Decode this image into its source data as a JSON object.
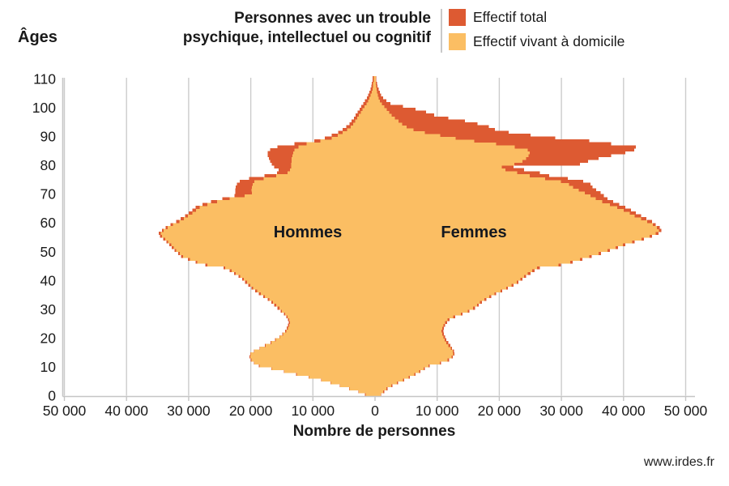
{
  "header": {
    "title_line1": "Personnes avec un trouble",
    "title_line2": "psychique, intellectuel ou cognitif",
    "legend": [
      {
        "label": "Effectif total",
        "color": "#dd5a32"
      },
      {
        "label": "Effectif vivant à domicile",
        "color": "#fbbe63"
      }
    ]
  },
  "footer": {
    "source": "www.irdes.fr"
  },
  "chart_data": {
    "type": "bar",
    "subtype": "population-pyramid",
    "title": "Personnes avec un trouble psychique, intellectuel ou cognitif",
    "y_axis_title": "Âges",
    "x_axis_title": "Nombre de personnes",
    "left_label": "Hommes",
    "right_label": "Femmes",
    "grid": "vertical-only",
    "xlim": [
      -50000,
      50000
    ],
    "ylim": [
      0,
      110
    ],
    "colors": {
      "total": "#dd5a32",
      "domicile": "#fbbe63",
      "grid": "#cccccc",
      "axis": "#c5c5c5"
    },
    "y_ticks": [
      110,
      100,
      90,
      80,
      70,
      60,
      50,
      40,
      30,
      20,
      10,
      0
    ],
    "x_ticks": [
      {
        "value": -50000,
        "label": "50 000"
      },
      {
        "value": -40000,
        "label": "40 000"
      },
      {
        "value": -30000,
        "label": "30 000"
      },
      {
        "value": -20000,
        "label": "20 000"
      },
      {
        "value": -10000,
        "label": "10 000"
      },
      {
        "value": 0,
        "label": "0"
      },
      {
        "value": 10000,
        "label": "10 000"
      },
      {
        "value": 20000,
        "label": "20 000"
      },
      {
        "value": 30000,
        "label": "30 000"
      },
      {
        "value": 40000,
        "label": "40 000"
      },
      {
        "value": 50000,
        "label": "50 000"
      }
    ],
    "ages": "index = age in years, 0 to 110",
    "series": [
      {
        "name": "Hommes - Effectif total",
        "side": "left",
        "color": "#dd5a32",
        "values": [
          1600,
          2700,
          4200,
          5700,
          7200,
          8700,
          10700,
          12700,
          14700,
          16700,
          18700,
          19500,
          20000,
          20200,
          20100,
          19500,
          18600,
          17700,
          16800,
          16100,
          15400,
          14900,
          14500,
          14200,
          14000,
          13900,
          14000,
          14300,
          14700,
          15200,
          15700,
          16200,
          16700,
          17300,
          18000,
          18700,
          19300,
          19900,
          20400,
          20900,
          21400,
          22000,
          22700,
          23400,
          24400,
          27300,
          28900,
          30100,
          31200,
          31700,
          32300,
          32700,
          33100,
          33600,
          34100,
          34600,
          34800,
          34300,
          33700,
          32900,
          32000,
          31300,
          30600,
          30000,
          29400,
          28900,
          27800,
          26400,
          24600,
          22600,
          22500,
          22500,
          22400,
          22200,
          21800,
          20300,
          17800,
          15800,
          15500,
          16200,
          16600,
          16900,
          17100,
          17300,
          17300,
          16900,
          15700,
          13000,
          9800,
          8100,
          7000,
          5900,
          5200,
          4600,
          4100,
          3800,
          3400,
          3100,
          2800,
          2500,
          2200,
          1900,
          1600,
          1300,
          1100,
          900,
          700,
          600,
          500,
          400,
          400
        ]
      },
      {
        "name": "Hommes - Effectif vivant à domicile",
        "side": "left",
        "color": "#fbbe63",
        "values": [
          1500,
          2600,
          4100,
          5600,
          7100,
          8600,
          10600,
          12600,
          14600,
          16600,
          18600,
          19400,
          19900,
          20100,
          20000,
          19400,
          18500,
          17600,
          16700,
          16000,
          15300,
          14800,
          14300,
          14000,
          13800,
          13700,
          13800,
          14100,
          14500,
          15000,
          15400,
          15900,
          16400,
          17000,
          17700,
          18400,
          19000,
          19600,
          20100,
          20600,
          21100,
          21700,
          22400,
          23100,
          24100,
          27000,
          28600,
          29800,
          30900,
          31400,
          32000,
          32400,
          32800,
          33300,
          33800,
          34300,
          34500,
          34000,
          33400,
          32500,
          31500,
          30800,
          30100,
          29400,
          28800,
          28200,
          27000,
          25400,
          23400,
          21000,
          19800,
          19900,
          19800,
          19700,
          19400,
          17900,
          15900,
          14100,
          13700,
          13500,
          13500,
          13400,
          13400,
          13300,
          13200,
          13000,
          12300,
          11000,
          8800,
          7000,
          6000,
          5200,
          4500,
          3900,
          3500,
          3200,
          2900,
          2600,
          2300,
          2000,
          1700,
          1400,
          1100,
          900,
          700,
          500,
          400,
          300,
          300,
          200,
          200
        ]
      },
      {
        "name": "Femmes - Effectif total",
        "side": "right",
        "color": "#dd5a32",
        "values": [
          1000,
          1500,
          2000,
          2800,
          3700,
          4700,
          5600,
          6500,
          7300,
          8000,
          8800,
          10600,
          11900,
          12500,
          12800,
          12700,
          12400,
          12100,
          11800,
          11500,
          11300,
          11100,
          11000,
          11100,
          11300,
          11600,
          12000,
          12900,
          14100,
          15200,
          16100,
          16700,
          17200,
          17900,
          18700,
          19500,
          20500,
          21400,
          22300,
          23100,
          23700,
          24300,
          25000,
          25700,
          26500,
          29900,
          31800,
          33400,
          34900,
          36400,
          37800,
          39100,
          40300,
          41800,
          43300,
          44600,
          45600,
          46100,
          45800,
          45200,
          44600,
          43700,
          42800,
          42000,
          41200,
          40300,
          39300,
          38300,
          37400,
          36800,
          36300,
          35600,
          35000,
          34700,
          33500,
          31000,
          28000,
          26500,
          24000,
          22300,
          33000,
          34300,
          36000,
          38000,
          40300,
          41700,
          42000,
          38000,
          34500,
          29000,
          25000,
          21500,
          19300,
          18300,
          16500,
          14500,
          11800,
          9500,
          8200,
          6500,
          4500,
          2500,
          1800,
          1300,
          1000,
          800,
          600,
          400,
          300,
          200,
          200
        ]
      },
      {
        "name": "Femmes - Effectif vivant à domicile",
        "side": "right",
        "color": "#fbbe63",
        "values": [
          900,
          1300,
          1800,
          2600,
          3500,
          4500,
          5400,
          6300,
          7100,
          7800,
          8600,
          10400,
          11700,
          12300,
          12600,
          12500,
          12200,
          11800,
          11500,
          11200,
          11000,
          10800,
          10700,
          10800,
          11000,
          11300,
          11700,
          12600,
          13800,
          14900,
          15800,
          16400,
          16900,
          17600,
          18400,
          19200,
          20200,
          21100,
          22000,
          22800,
          23400,
          24000,
          24600,
          25300,
          26100,
          29500,
          31400,
          33000,
          34500,
          36000,
          37400,
          38700,
          39900,
          41400,
          42900,
          44200,
          45200,
          45700,
          45400,
          44700,
          43800,
          42800,
          41800,
          41000,
          40000,
          39000,
          37800,
          36600,
          35500,
          34700,
          33800,
          32800,
          31900,
          31200,
          29900,
          27400,
          24900,
          22900,
          21000,
          20400,
          22400,
          23700,
          24300,
          24700,
          24900,
          24600,
          22500,
          19500,
          16000,
          13000,
          10500,
          8000,
          6200,
          5100,
          4400,
          3800,
          3200,
          2700,
          2300,
          1900,
          1500,
          1100,
          800,
          600,
          450,
          350,
          250,
          200,
          150,
          100,
          100
        ]
      }
    ]
  }
}
